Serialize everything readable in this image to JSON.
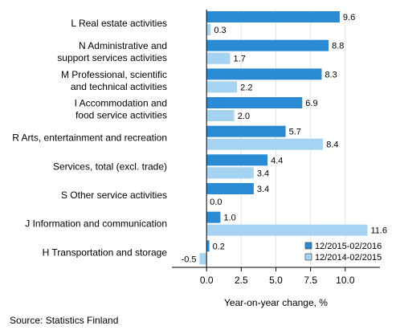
{
  "chart_data": {
    "type": "bar",
    "orientation": "horizontal",
    "categories": [
      [
        "L Real estate activities"
      ],
      [
        "N Administrative and",
        "support services activities"
      ],
      [
        "M Professional, scientific",
        "and technical activities"
      ],
      [
        "I Accommodation and",
        "food service activities"
      ],
      [
        "R Arts, entertainment and recreation"
      ],
      [
        "Services, total (excl. trade)"
      ],
      [
        "S Other service activities"
      ],
      [
        "J Information and communication"
      ],
      [
        "H Transportation and storage"
      ]
    ],
    "series": [
      {
        "name": "12/2015-02/2016",
        "color": "#2a8ad4",
        "values": [
          9.6,
          8.8,
          8.3,
          6.9,
          5.7,
          4.4,
          3.4,
          1.0,
          0.2
        ],
        "labels": [
          "9.6",
          "8.8",
          "8.3",
          "6.9",
          "5.7",
          "4.4",
          "3.4",
          "1.0",
          "0.2"
        ]
      },
      {
        "name": "12/2014-02/2015",
        "color": "#a6d3f2",
        "values": [
          0.3,
          1.7,
          2.2,
          2.0,
          8.4,
          3.4,
          0.0,
          11.6,
          -0.5
        ],
        "labels": [
          "0.3",
          "1.7",
          "2.2",
          "2.0",
          "8.4",
          "3.4",
          "0.0",
          "11.6",
          "-0.5"
        ]
      }
    ],
    "xlim": [
      -2.5,
      12.5
    ],
    "xticks": [
      0,
      2.5,
      5,
      7.5,
      10
    ],
    "xtick_labels": [
      "0.0",
      "2.5",
      "5.0",
      "7.5",
      "10.0"
    ],
    "xlabel": "Year-on-year change, %",
    "legend_position": "bottom-right",
    "source": "Source: Statistics Finland"
  }
}
